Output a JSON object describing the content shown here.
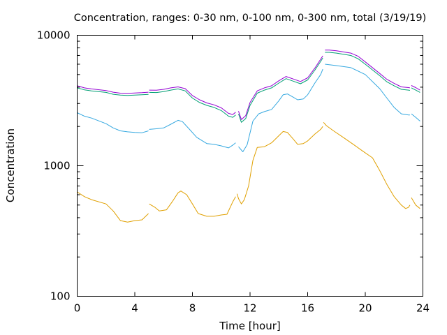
{
  "chart_data": {
    "type": "line",
    "title": "Concentration, ranges: 0-30 nm, 0-100 nm, 0-300 nm, total (3/19/19)",
    "xlabel": "Time [hour]",
    "ylabel": "Concentration",
    "xlim": [
      0,
      24
    ],
    "ylim": [
      100,
      10000
    ],
    "yscale": "log",
    "grid": false,
    "legend": "none",
    "x_ticks": [
      "0",
      "4",
      "8",
      "12",
      "16",
      "20",
      "24"
    ],
    "y_ticks": [
      "100",
      "1000",
      "10000"
    ],
    "series": [
      {
        "color": "#e0a000",
        "segments": [
          [
            [
              0,
              630
            ],
            [
              0.5,
              580
            ],
            [
              1,
              550
            ],
            [
              2,
              510
            ],
            [
              2.5,
              450
            ],
            [
              3,
              380
            ],
            [
              3.5,
              370
            ],
            [
              4,
              380
            ],
            [
              4.5,
              385
            ],
            [
              4.95,
              430
            ]
          ],
          [
            [
              5,
              510
            ],
            [
              5.4,
              480
            ],
            [
              5.7,
              450
            ],
            [
              6.2,
              460
            ],
            [
              6.6,
              530
            ],
            [
              7,
              620
            ],
            [
              7.2,
              640
            ],
            [
              7.6,
              600
            ],
            [
              8,
              510
            ],
            [
              8.4,
              430
            ],
            [
              9,
              410
            ],
            [
              9.5,
              410
            ],
            [
              10,
              420
            ],
            [
              10.4,
              425
            ],
            [
              10.8,
              530
            ],
            [
              11,
              580
            ]
          ],
          [
            [
              11.1,
              610
            ],
            [
              11.2,
              560
            ],
            [
              11.4,
              510
            ],
            [
              11.6,
              550
            ],
            [
              11.9,
              700
            ],
            [
              12.2,
              1100
            ],
            [
              12.5,
              1380
            ],
            [
              13,
              1400
            ],
            [
              13.5,
              1500
            ],
            [
              14,
              1700
            ],
            [
              14.3,
              1830
            ],
            [
              14.6,
              1800
            ],
            [
              15,
              1600
            ],
            [
              15.3,
              1460
            ],
            [
              15.7,
              1480
            ],
            [
              16,
              1550
            ],
            [
              16.5,
              1750
            ],
            [
              16.9,
              1900
            ],
            [
              17.05,
              2000
            ]
          ],
          [
            [
              17.1,
              2150
            ],
            [
              17.3,
              2030
            ],
            [
              17.8,
              1850
            ],
            [
              18.5,
              1640
            ],
            [
              19.2,
              1450
            ],
            [
              19.8,
              1300
            ],
            [
              20.5,
              1150
            ],
            [
              21,
              920
            ],
            [
              21.5,
              720
            ],
            [
              22,
              580
            ],
            [
              22.5,
              500
            ],
            [
              22.8,
              470
            ],
            [
              23,
              480
            ],
            [
              23.1,
              500
            ]
          ],
          [
            [
              23.2,
              570
            ],
            [
              23.5,
              500
            ],
            [
              23.8,
              470
            ]
          ]
        ]
      },
      {
        "color": "#35a8e0",
        "segments": [
          [
            [
              0,
              2550
            ],
            [
              0.5,
              2400
            ],
            [
              1,
              2320
            ],
            [
              2,
              2100
            ],
            [
              2.5,
              1950
            ],
            [
              3,
              1850
            ],
            [
              3.5,
              1820
            ],
            [
              4,
              1800
            ],
            [
              4.5,
              1790
            ],
            [
              4.95,
              1850
            ]
          ],
          [
            [
              5,
              1900
            ],
            [
              5.5,
              1920
            ],
            [
              6,
              1950
            ],
            [
              6.5,
              2080
            ],
            [
              7,
              2230
            ],
            [
              7.3,
              2180
            ],
            [
              7.8,
              1900
            ],
            [
              8.3,
              1650
            ],
            [
              9,
              1480
            ],
            [
              9.5,
              1460
            ],
            [
              10,
              1420
            ],
            [
              10.5,
              1370
            ],
            [
              10.8,
              1440
            ],
            [
              11,
              1500
            ]
          ],
          [
            [
              11.2,
              1400
            ],
            [
              11.5,
              1280
            ],
            [
              11.8,
              1450
            ],
            [
              12.2,
              2200
            ],
            [
              12.6,
              2500
            ],
            [
              13,
              2600
            ],
            [
              13.5,
              2700
            ],
            [
              14,
              3150
            ],
            [
              14.3,
              3500
            ],
            [
              14.6,
              3550
            ],
            [
              15,
              3350
            ],
            [
              15.3,
              3200
            ],
            [
              15.7,
              3250
            ],
            [
              16,
              3500
            ],
            [
              16.5,
              4300
            ],
            [
              16.9,
              5000
            ],
            [
              17.05,
              5500
            ]
          ],
          [
            [
              17.2,
              6000
            ],
            [
              17.5,
              5950
            ],
            [
              18,
              5850
            ],
            [
              19,
              5650
            ],
            [
              20,
              5000
            ],
            [
              21,
              3900
            ],
            [
              21.5,
              3300
            ],
            [
              22,
              2800
            ],
            [
              22.5,
              2500
            ],
            [
              23,
              2450
            ],
            [
              23.1,
              2450
            ]
          ],
          [
            [
              23.2,
              2500
            ],
            [
              23.5,
              2350
            ],
            [
              23.8,
              2200
            ]
          ]
        ]
      },
      {
        "color": "#009e73",
        "segments": [
          [
            [
              0,
              3950
            ],
            [
              0.5,
              3820
            ],
            [
              1,
              3750
            ],
            [
              2,
              3650
            ],
            [
              2.5,
              3530
            ],
            [
              3,
              3480
            ],
            [
              3.5,
              3460
            ],
            [
              4,
              3480
            ],
            [
              4.5,
              3500
            ],
            [
              4.95,
              3520
            ]
          ],
          [
            [
              5,
              3650
            ],
            [
              5.5,
              3640
            ],
            [
              6,
              3700
            ],
            [
              6.5,
              3800
            ],
            [
              7,
              3880
            ],
            [
              7.5,
              3750
            ],
            [
              8,
              3300
            ],
            [
              8.5,
              3050
            ],
            [
              9,
              2900
            ],
            [
              9.5,
              2800
            ],
            [
              10,
              2650
            ],
            [
              10.5,
              2400
            ],
            [
              10.8,
              2350
            ],
            [
              11,
              2450
            ]
          ],
          [
            [
              11.2,
              2500
            ],
            [
              11.4,
              2150
            ],
            [
              11.7,
              2300
            ],
            [
              12,
              2900
            ],
            [
              12.5,
              3600
            ],
            [
              13,
              3800
            ],
            [
              13.5,
              3950
            ],
            [
              14,
              4300
            ],
            [
              14.5,
              4650
            ],
            [
              15,
              4450
            ],
            [
              15.5,
              4250
            ],
            [
              16,
              4550
            ],
            [
              16.5,
              5400
            ],
            [
              16.9,
              6300
            ],
            [
              17.05,
              6700
            ]
          ],
          [
            [
              17.2,
              7400
            ],
            [
              17.5,
              7400
            ],
            [
              18,
              7300
            ],
            [
              19,
              7000
            ],
            [
              19.5,
              6600
            ],
            [
              20,
              6000
            ],
            [
              21,
              4900
            ],
            [
              21.5,
              4400
            ],
            [
              22,
              4100
            ],
            [
              22.5,
              3850
            ],
            [
              23,
              3800
            ],
            [
              23.1,
              3780
            ]
          ],
          [
            [
              23.2,
              3950
            ],
            [
              23.5,
              3800
            ],
            [
              23.8,
              3650
            ]
          ]
        ]
      },
      {
        "color": "#9400d3",
        "segments": [
          [
            [
              0,
              4100
            ],
            [
              0.5,
              3950
            ],
            [
              1,
              3880
            ],
            [
              2,
              3770
            ],
            [
              2.5,
              3660
            ],
            [
              3,
              3600
            ],
            [
              3.5,
              3590
            ],
            [
              4,
              3610
            ],
            [
              4.5,
              3630
            ],
            [
              4.95,
              3660
            ]
          ],
          [
            [
              5,
              3800
            ],
            [
              5.5,
              3790
            ],
            [
              6,
              3850
            ],
            [
              6.5,
              3950
            ],
            [
              7,
              4020
            ],
            [
              7.5,
              3900
            ],
            [
              8,
              3450
            ],
            [
              8.5,
              3200
            ],
            [
              9,
              3030
            ],
            [
              9.5,
              2930
            ],
            [
              10,
              2780
            ],
            [
              10.5,
              2520
            ],
            [
              10.8,
              2470
            ],
            [
              11,
              2570
            ]
          ],
          [
            [
              11.2,
              2620
            ],
            [
              11.4,
              2260
            ],
            [
              11.7,
              2420
            ],
            [
              12,
              3050
            ],
            [
              12.5,
              3750
            ],
            [
              13,
              3950
            ],
            [
              13.5,
              4100
            ],
            [
              14,
              4480
            ],
            [
              14.5,
              4830
            ],
            [
              15,
              4620
            ],
            [
              15.5,
              4420
            ],
            [
              16,
              4720
            ],
            [
              16.5,
              5600
            ],
            [
              16.9,
              6550
            ],
            [
              17.05,
              6950
            ]
          ],
          [
            [
              17.2,
              7700
            ],
            [
              17.5,
              7700
            ],
            [
              18,
              7600
            ],
            [
              19,
              7300
            ],
            [
              19.5,
              6900
            ],
            [
              20,
              6250
            ],
            [
              21,
              5100
            ],
            [
              21.5,
              4600
            ],
            [
              22,
              4280
            ],
            [
              22.5,
              4020
            ],
            [
              23,
              3970
            ],
            [
              23.1,
              3950
            ]
          ],
          [
            [
              23.2,
              4120
            ],
            [
              23.5,
              3970
            ],
            [
              23.8,
              3800
            ]
          ]
        ]
      }
    ]
  }
}
